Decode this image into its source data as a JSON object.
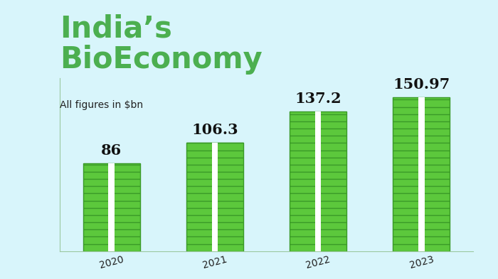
{
  "chart_data": {
    "type": "bar",
    "title": "India’s\nBioEconomy",
    "subtitle": "All figures in $bn",
    "categories": [
      "2020",
      "2021",
      "2022",
      "2023"
    ],
    "values": [
      86,
      106.3,
      137.2,
      150.97
    ],
    "color": "#5cc83c",
    "ylim": [
      0,
      170
    ],
    "yticks": [],
    "data_labels": true,
    "tick_labels": "x"
  }
}
